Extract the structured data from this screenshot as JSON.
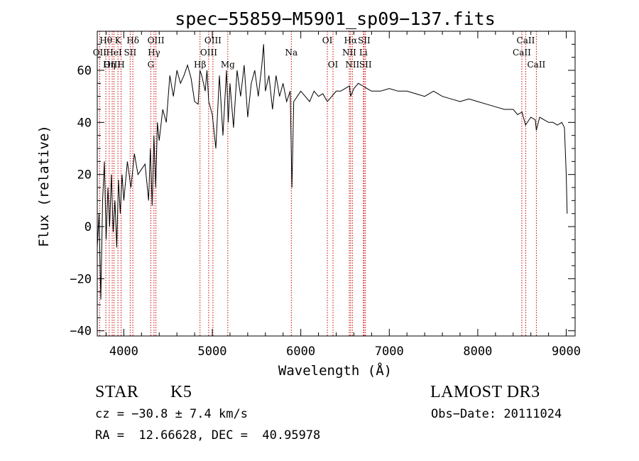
{
  "chart_data": {
    "type": "line",
    "title": "spec−55859−M5901_sp09−137.fits",
    "xlabel": "Wavelength (Å)",
    "ylabel": "Flux (relative)",
    "xlim": [
      3700,
      9100
    ],
    "ylim": [
      -42,
      75
    ],
    "xticks": [
      4000,
      5000,
      6000,
      7000,
      8000,
      9000
    ],
    "xtick_labels": [
      "4000",
      "5000",
      "6000",
      "7000",
      "8000",
      "9000"
    ],
    "yticks": [
      -40,
      -20,
      0,
      20,
      40,
      60
    ],
    "ytick_labels": [
      "−40",
      "−20",
      "0",
      "20",
      "40",
      "60"
    ],
    "series": [
      {
        "name": "flux",
        "x": [
          3700,
          3720,
          3740,
          3760,
          3780,
          3800,
          3820,
          3840,
          3860,
          3880,
          3900,
          3920,
          3940,
          3960,
          3980,
          4000,
          4040,
          4080,
          4120,
          4160,
          4200,
          4240,
          4280,
          4300,
          4320,
          4340,
          4360,
          4380,
          4400,
          4440,
          4480,
          4520,
          4560,
          4600,
          4640,
          4680,
          4720,
          4760,
          4800,
          4840,
          4860,
          4880,
          4900,
          4920,
          4940,
          4960,
          5000,
          5040,
          5080,
          5120,
          5160,
          5180,
          5200,
          5240,
          5280,
          5320,
          5360,
          5400,
          5440,
          5480,
          5520,
          5560,
          5580,
          5600,
          5640,
          5680,
          5720,
          5760,
          5800,
          5840,
          5880,
          5900,
          5920,
          5960,
          6000,
          6050,
          6100,
          6150,
          6200,
          6250,
          6300,
          6350,
          6400,
          6450,
          6500,
          6550,
          6563,
          6600,
          6650,
          6700,
          6750,
          6800,
          6900,
          7000,
          7100,
          7200,
          7300,
          7400,
          7500,
          7600,
          7700,
          7800,
          7900,
          8000,
          8100,
          8200,
          8300,
          8400,
          8450,
          8500,
          8540,
          8600,
          8650,
          8662,
          8700,
          8750,
          8800,
          8850,
          8900,
          8950,
          8980,
          9000,
          9010
        ],
        "y": [
          -8,
          5,
          -28,
          10,
          25,
          -5,
          15,
          0,
          20,
          -2,
          10,
          -8,
          18,
          5,
          20,
          10,
          25,
          15,
          28,
          20,
          22,
          24,
          10,
          30,
          8,
          35,
          15,
          40,
          33,
          45,
          40,
          58,
          50,
          60,
          55,
          58,
          62,
          57,
          48,
          47,
          60,
          58,
          55,
          52,
          60,
          48,
          43,
          30,
          58,
          35,
          60,
          40,
          55,
          38,
          60,
          50,
          62,
          42,
          55,
          60,
          50,
          62,
          70,
          52,
          58,
          45,
          58,
          50,
          55,
          48,
          52,
          15,
          48,
          50,
          52,
          50,
          48,
          52,
          50,
          51,
          48,
          50,
          52,
          52,
          53,
          54,
          50,
          53,
          55,
          54,
          53,
          52,
          52,
          53,
          52,
          52,
          51,
          50,
          52,
          50,
          49,
          48,
          49,
          48,
          47,
          46,
          45,
          45,
          43,
          44,
          39,
          42,
          41,
          37,
          42,
          41,
          40,
          40,
          39,
          40,
          38,
          20,
          5
        ]
      }
    ],
    "line_markers": [
      {
        "label": "Hθ",
        "wavelength": 3797,
        "row": 1
      },
      {
        "label": "OII",
        "wavelength": 3727,
        "row": 2
      },
      {
        "label": "OIII",
        "wavelength": 3869,
        "row": 3
      },
      {
        "label": "Hη",
        "wavelength": 3835,
        "row": 3
      },
      {
        "label": "HeI",
        "wavelength": 3889,
        "row": 2
      },
      {
        "label": "K",
        "wavelength": 3934,
        "row": 1
      },
      {
        "label": "SII",
        "wavelength": 4072,
        "row": 2
      },
      {
        "label": "H",
        "wavelength": 3969,
        "row": 3
      },
      {
        "label": "Hδ",
        "wavelength": 4102,
        "row": 1
      },
      {
        "label": "OIII",
        "wavelength": 4363,
        "row": 1
      },
      {
        "label": "Hγ",
        "wavelength": 4341,
        "row": 2
      },
      {
        "label": "G",
        "wavelength": 4305,
        "row": 3
      },
      {
        "label": "Hβ",
        "wavelength": 4861,
        "row": 3
      },
      {
        "label": "OIII",
        "wavelength": 5007,
        "row": 1
      },
      {
        "label": "OIII",
        "wavelength": 4959,
        "row": 2
      },
      {
        "label": "Mg",
        "wavelength": 5175,
        "row": 3
      },
      {
        "label": "Na",
        "wavelength": 5893,
        "row": 2
      },
      {
        "label": "OI",
        "wavelength": 6300,
        "row": 1
      },
      {
        "label": "OI",
        "wavelength": 6364,
        "row": 3
      },
      {
        "label": "Hα",
        "wavelength": 6563,
        "row": 1
      },
      {
        "label": "NII",
        "wavelength": 6548,
        "row": 2
      },
      {
        "label": "NII",
        "wavelength": 6583,
        "row": 3
      },
      {
        "label": "SII",
        "wavelength": 6716,
        "row": 1
      },
      {
        "label": "Li",
        "wavelength": 6707,
        "row": 2
      },
      {
        "label": "SII",
        "wavelength": 6731,
        "row": 3
      },
      {
        "label": "CaII",
        "wavelength": 8542,
        "row": 1
      },
      {
        "label": "CaII",
        "wavelength": 8498,
        "row": 2
      },
      {
        "label": "CaII",
        "wavelength": 8662,
        "row": 3
      }
    ]
  },
  "info": {
    "class_label": "STAR",
    "subclass_label": "K5",
    "survey_label": "LAMOST DR3",
    "velocity_line": "cz = −30.8 ± 7.4 km/s",
    "obs_date_line": "Obs−Date: 20111024",
    "coords_line": "RA =  12.66628, DEC =  40.95978"
  },
  "colors": {
    "marker_line": "#cc0000",
    "spectrum": "#000000",
    "axes": "#000000"
  }
}
